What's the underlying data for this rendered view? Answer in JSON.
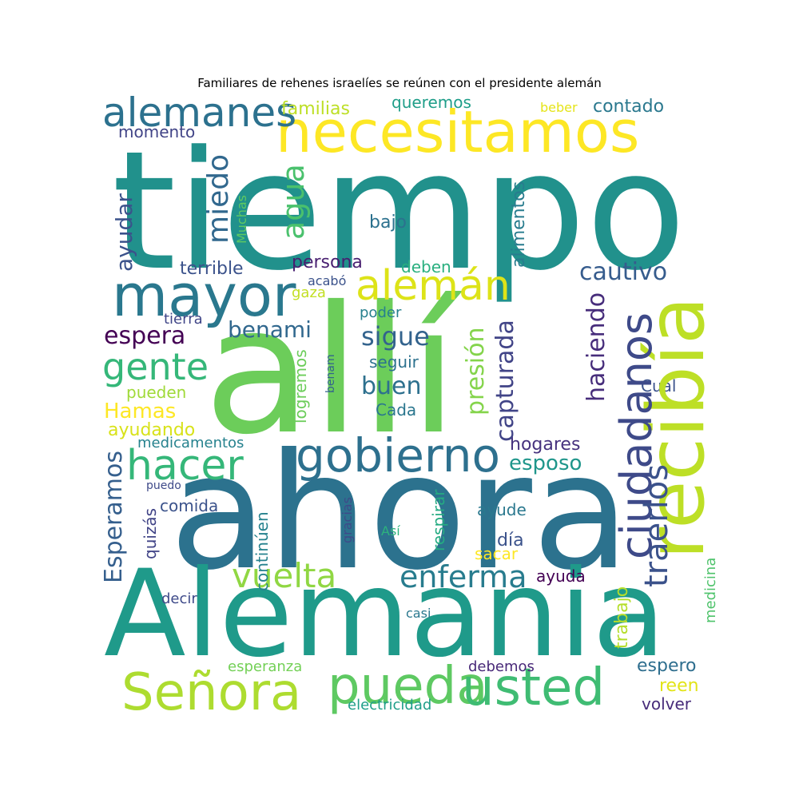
{
  "title": "Familiares de rehenes israelíes se reúnen con el presidente alemán",
  "words": [
    {
      "text": "tiempo",
      "color": "#21918c"
    },
    {
      "text": "allí",
      "color": "#6ccd5a"
    },
    {
      "text": "ahora",
      "color": "#2c728e"
    },
    {
      "text": "Alemania",
      "color": "#1f9a8a"
    },
    {
      "text": "necesitamos",
      "color": "#fde725"
    },
    {
      "text": "recibía",
      "color": "#bddf26"
    },
    {
      "text": "mayor",
      "color": "#2a788e"
    },
    {
      "text": "alemanes",
      "color": "#2c718e"
    },
    {
      "text": "alemán",
      "color": "#dde318"
    },
    {
      "text": "gobierno",
      "color": "#2d708e"
    },
    {
      "text": "hacer",
      "color": "#35b779"
    },
    {
      "text": "ciudadanos",
      "color": "#3e4a89"
    },
    {
      "text": "Señora",
      "color": "#addc30"
    },
    {
      "text": "pueda",
      "color": "#5ec962"
    },
    {
      "text": "usted",
      "color": "#3fbc73"
    },
    {
      "text": "gente",
      "color": "#35b779"
    },
    {
      "text": "vuelta",
      "color": "#90d743"
    },
    {
      "text": "enferma",
      "color": "#287c8e"
    },
    {
      "text": "traerlos",
      "color": "#3b528b"
    },
    {
      "text": "miedo",
      "color": "#31688e"
    },
    {
      "text": "agua",
      "color": "#4ac16d"
    },
    {
      "text": "cautivo",
      "color": "#365c8d"
    },
    {
      "text": "Esperamos",
      "color": "#355f8d"
    },
    {
      "text": "ayudar",
      "color": "#3b528b"
    },
    {
      "text": "espera",
      "color": "#440154"
    },
    {
      "text": "benami",
      "color": "#31688e"
    },
    {
      "text": "sigue",
      "color": "#33638d"
    },
    {
      "text": "buen",
      "color": "#2d708e"
    },
    {
      "text": "presión",
      "color": "#84d44b"
    },
    {
      "text": "capturada",
      "color": "#414487"
    },
    {
      "text": "haciendo",
      "color": "#472d7b"
    },
    {
      "text": "familias",
      "color": "#bddf26"
    },
    {
      "text": "queremos",
      "color": "#1f9e89"
    },
    {
      "text": "contado",
      "color": "#2a788e"
    },
    {
      "text": "momento",
      "color": "#414487"
    },
    {
      "text": "beber",
      "color": "#e5e419"
    },
    {
      "text": "alimentos",
      "color": "#287c8e"
    },
    {
      "text": "Muchas",
      "color": "#5ec962"
    },
    {
      "text": "bajo",
      "color": "#2c718e"
    },
    {
      "text": "terrible",
      "color": "#3b528b"
    },
    {
      "text": "persona",
      "color": "#481f70"
    },
    {
      "text": "deben",
      "color": "#29af7f"
    },
    {
      "text": "acabó",
      "color": "#3b528b"
    },
    {
      "text": "gaza",
      "color": "#c2df23"
    },
    {
      "text": "poder",
      "color": "#27808e"
    },
    {
      "text": "tierra",
      "color": "#404688"
    },
    {
      "text": "seguir",
      "color": "#2c718e"
    },
    {
      "text": "logremos",
      "color": "#6ccd5a"
    },
    {
      "text": "benam",
      "color": "#33638d"
    },
    {
      "text": "pueden",
      "color": "#a0da39"
    },
    {
      "text": "Hamas",
      "color": "#fde725"
    },
    {
      "text": "Cada",
      "color": "#2a768e"
    },
    {
      "text": "Cuál",
      "color": "#3b528b"
    },
    {
      "text": "ayudando",
      "color": "#d8e219"
    },
    {
      "text": "medicamentos",
      "color": "#26828e"
    },
    {
      "text": "hogares",
      "color": "#46327e"
    },
    {
      "text": "esposo",
      "color": "#1f968b"
    },
    {
      "text": "puedo",
      "color": "#3e4a89"
    },
    {
      "text": "comida",
      "color": "#3b528b"
    },
    {
      "text": "quizás",
      "color": "#414487"
    },
    {
      "text": "continúen",
      "color": "#26828e"
    },
    {
      "text": "gracias",
      "color": "#3e4a89"
    },
    {
      "text": "Así",
      "color": "#2db27d"
    },
    {
      "text": "respirar",
      "color": "#25ab82"
    },
    {
      "text": "ayude",
      "color": "#2a788e"
    },
    {
      "text": "día",
      "color": "#3b528b"
    },
    {
      "text": "sacar",
      "color": "#fde725"
    },
    {
      "text": "trabajo",
      "color": "#b5de2b"
    },
    {
      "text": "ayuda",
      "color": "#440154"
    },
    {
      "text": "medicina",
      "color": "#4ec36b"
    },
    {
      "text": "decir",
      "color": "#3e4a89"
    },
    {
      "text": "casi",
      "color": "#2a788e"
    },
    {
      "text": "esperanza",
      "color": "#73d056"
    },
    {
      "text": "debemos",
      "color": "#482878"
    },
    {
      "text": "espero",
      "color": "#2e6e8e"
    },
    {
      "text": "reen",
      "color": "#e2e418"
    },
    {
      "text": "electricidad",
      "color": "#1f9e89"
    },
    {
      "text": "volver",
      "color": "#472c7a"
    }
  ]
}
